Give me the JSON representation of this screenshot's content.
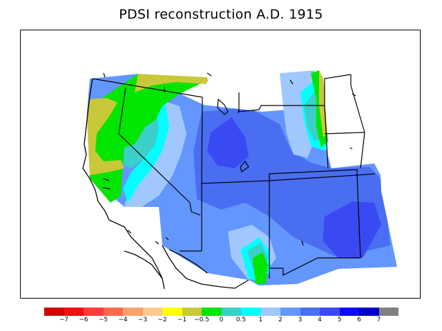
{
  "title": "PDSI reconstruction A.D. 1915",
  "legend": {
    "colors": [
      "#d40000",
      "#f21010",
      "#ff3a3a",
      "#ff6a4a",
      "#ff9f6a",
      "#ffc890",
      "#ffff00",
      "#c8c83a",
      "#00e600",
      "#3acfc8",
      "#00ffff",
      "#a0c8ff",
      "#6496ff",
      "#4a6ef2",
      "#3a4af2",
      "#0a0aff",
      "#0000c8",
      "#808080"
    ],
    "labels": [
      "−7",
      "−6",
      "−5",
      "−4",
      "−3",
      "−2",
      "−1",
      "−0.5",
      "0",
      "0.5",
      "1",
      "2",
      "3",
      "4",
      "5",
      "6",
      "7"
    ]
  },
  "map": {
    "fills": {
      "yellow": "#c8c83a",
      "green": "#00e600",
      "teal": "#3acfc8",
      "cyan": "#00ffff",
      "light_blue": "#a0c8ff",
      "medium_blue": "#6496ff",
      "blue": "#4a6ef2",
      "deep_blue": "#3a4af2"
    }
  }
}
